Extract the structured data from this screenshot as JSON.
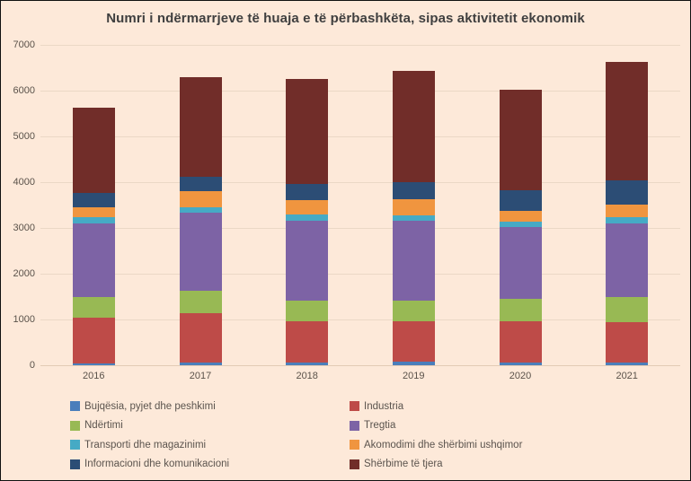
{
  "title": "Numri i ndërmarrjeve të huaja e të përbashkëta, sipas aktivitetit ekonomik",
  "colors": {
    "background": "#FDE9D9",
    "frame_border": "#111111",
    "gridline": "#EBD8C6",
    "title_text": "#3F3F3F",
    "axis_text": "#5A524A",
    "legend_text": "#5B544E"
  },
  "chart_data": {
    "type": "bar",
    "stacked": true,
    "title": "Numri i ndërmarrjeve të huaja e të përbashkëta, sipas aktivitetit ekonomik",
    "categories": [
      "2016",
      "2017",
      "2018",
      "2019",
      "2020",
      "2021"
    ],
    "series": [
      {
        "name": "Bujqësia, pyjet dhe  peshkimi",
        "color": "#4A7EBB",
        "values": [
          40,
          60,
          60,
          70,
          50,
          60
        ]
      },
      {
        "name": "Industria",
        "color": "#BE4B48",
        "values": [
          1000,
          1070,
          910,
          900,
          920,
          880
        ]
      },
      {
        "name": "Ndërtimi",
        "color": "#98B954",
        "values": [
          450,
          490,
          450,
          450,
          490,
          560
        ]
      },
      {
        "name": "Tregtia",
        "color": "#7D63A5",
        "values": [
          1600,
          1710,
          1740,
          1740,
          1570,
          1600
        ]
      },
      {
        "name": "Transporti dhe magazinimi",
        "color": "#46AAC5",
        "values": [
          140,
          120,
          130,
          120,
          110,
          140
        ]
      },
      {
        "name": "Akomodimi dhe shërbimi ushqimor",
        "color": "#F0953F",
        "values": [
          220,
          350,
          310,
          340,
          240,
          280
        ]
      },
      {
        "name": "Informacioni dhe komunikacioni",
        "color": "#2C4D75",
        "values": [
          310,
          320,
          370,
          380,
          440,
          530
        ]
      },
      {
        "name": "Shërbime të tjera",
        "color": "#712D29",
        "values": [
          1860,
          2180,
          2280,
          2430,
          2200,
          2580
        ]
      }
    ],
    "totals": [
      5620,
      6300,
      6250,
      6430,
      6020,
      6630
    ],
    "y_axis": {
      "min": 0,
      "max": 7000,
      "step": 1000,
      "tick_labels": [
        "0",
        "1000",
        "2000",
        "3000",
        "4000",
        "5000",
        "6000",
        "7000"
      ]
    },
    "grid": true,
    "legend_position": "bottom",
    "legend_columns": 2
  }
}
